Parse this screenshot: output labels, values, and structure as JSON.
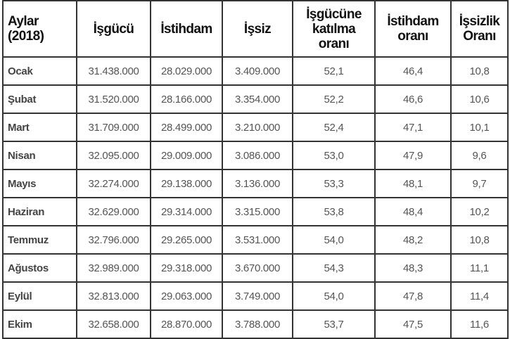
{
  "table": {
    "headers": [
      "Aylar (2018)",
      "İşgücü",
      "İstihdam",
      "İşsiz",
      "İşgücüne katılma oranı",
      "İstihdam oranı",
      "İşsizlik Oranı"
    ],
    "rows": [
      [
        "Ocak",
        "31.438.000",
        "28.029.000",
        "3.409.000",
        "52,1",
        "46,4",
        "10,8"
      ],
      [
        "Şubat",
        "31.520.000",
        "28.166.000",
        "3.354.000",
        "52,2",
        "46,6",
        "10,6"
      ],
      [
        "Mart",
        "31.709.000",
        "28.499.000",
        "3.210.000",
        "52,4",
        "47,1",
        "10,1"
      ],
      [
        "Nisan",
        "32.095.000",
        "29.009.000",
        "3.086.000",
        "53,0",
        "47,9",
        "9,6"
      ],
      [
        "Mayıs",
        "32.274.000",
        "29.138.000",
        "3.136.000",
        "53,3",
        "48,1",
        "9,7"
      ],
      [
        "Haziran",
        "32.629.000",
        "29.314.000",
        "3.315.000",
        "53,8",
        "48,4",
        "10,2"
      ],
      [
        "Temmuz",
        "32.796.000",
        "29.265.000",
        "3.531.000",
        "54,0",
        "48,2",
        "10,8"
      ],
      [
        "Ağustos",
        "32.989.000",
        "29.318.000",
        "3.670.000",
        "54,3",
        "48,3",
        "11,1"
      ],
      [
        "Eylül",
        "32.813.000",
        "29.063.000",
        "3.749.000",
        "54,0",
        "47,8",
        "11,4"
      ],
      [
        "Ekim",
        "32.658.000",
        "28.870.000",
        "3.788.000",
        "53,7",
        "47,5",
        "11,6"
      ]
    ]
  }
}
